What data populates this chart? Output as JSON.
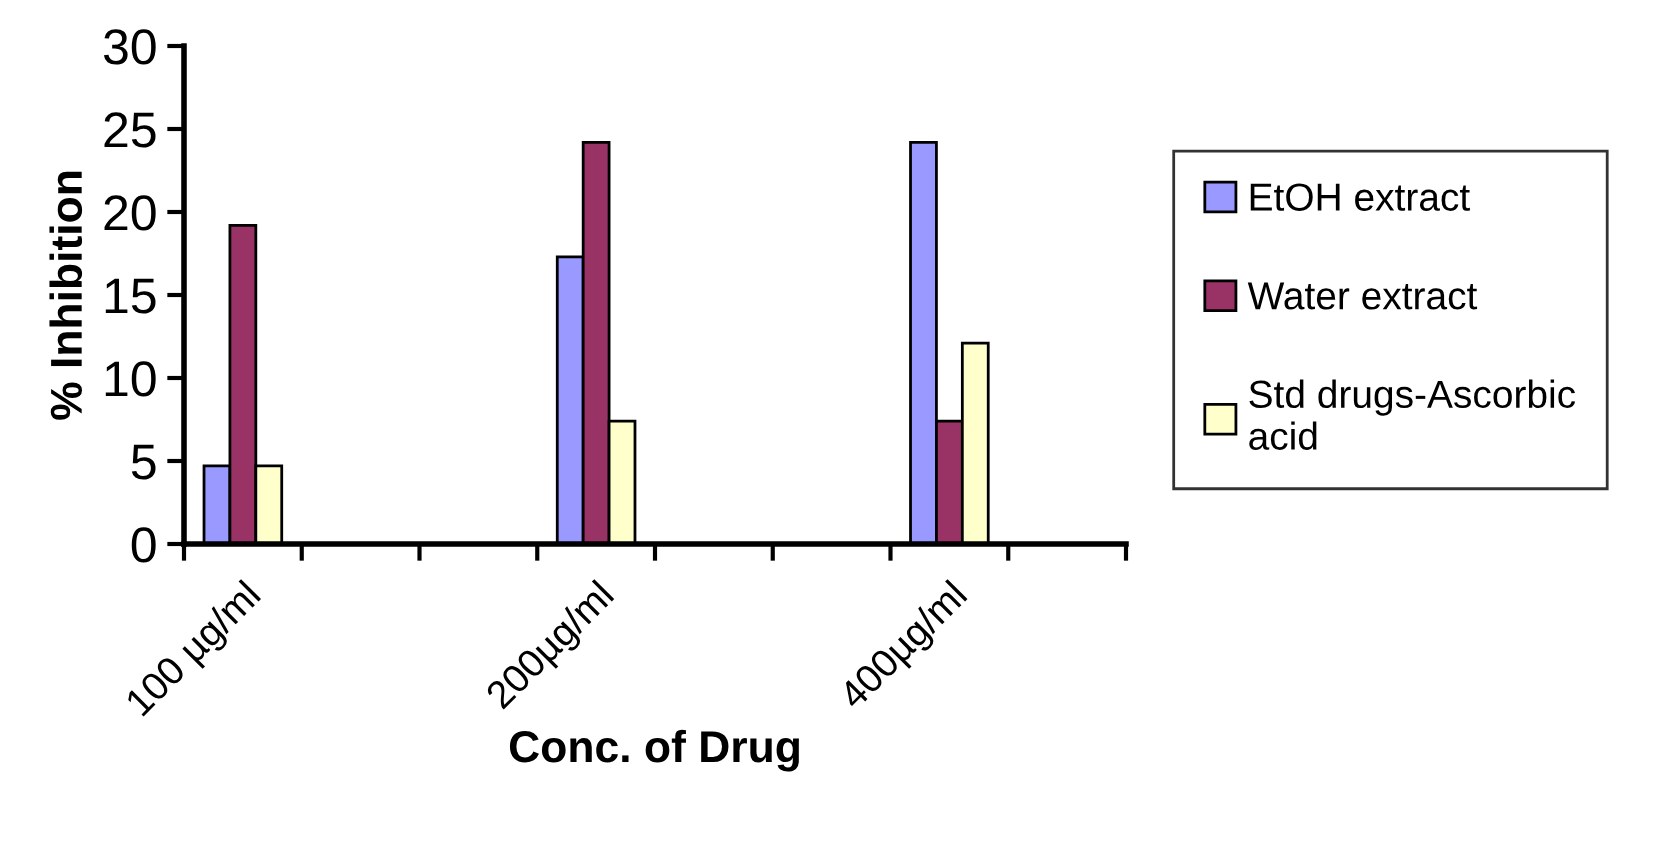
{
  "chart_data": {
    "type": "bar",
    "categories": [
      "100 µg/ml",
      null,
      null,
      "200µg/ml",
      null,
      null,
      "400µg/ml",
      null
    ],
    "series": [
      {
        "name": "EtOH extract",
        "color": "#9999ff",
        "values": [
          4.7,
          null,
          null,
          17.3,
          null,
          null,
          24.2,
          null
        ]
      },
      {
        "name": "Water extract",
        "color": "#993366",
        "values": [
          19.2,
          null,
          null,
          24.2,
          null,
          null,
          7.4,
          null
        ]
      },
      {
        "name": "Std drugs-Ascorbic acid",
        "color": "#ffffcc",
        "values": [
          4.7,
          null,
          null,
          7.4,
          null,
          null,
          12.1,
          null
        ]
      }
    ],
    "xlabel": "Conc. of Drug",
    "ylabel": "% Inhibition",
    "ylim": [
      0,
      30
    ],
    "yticks": [
      0,
      5,
      10,
      15,
      20,
      25,
      30
    ],
    "grid": false,
    "legend": "right"
  }
}
